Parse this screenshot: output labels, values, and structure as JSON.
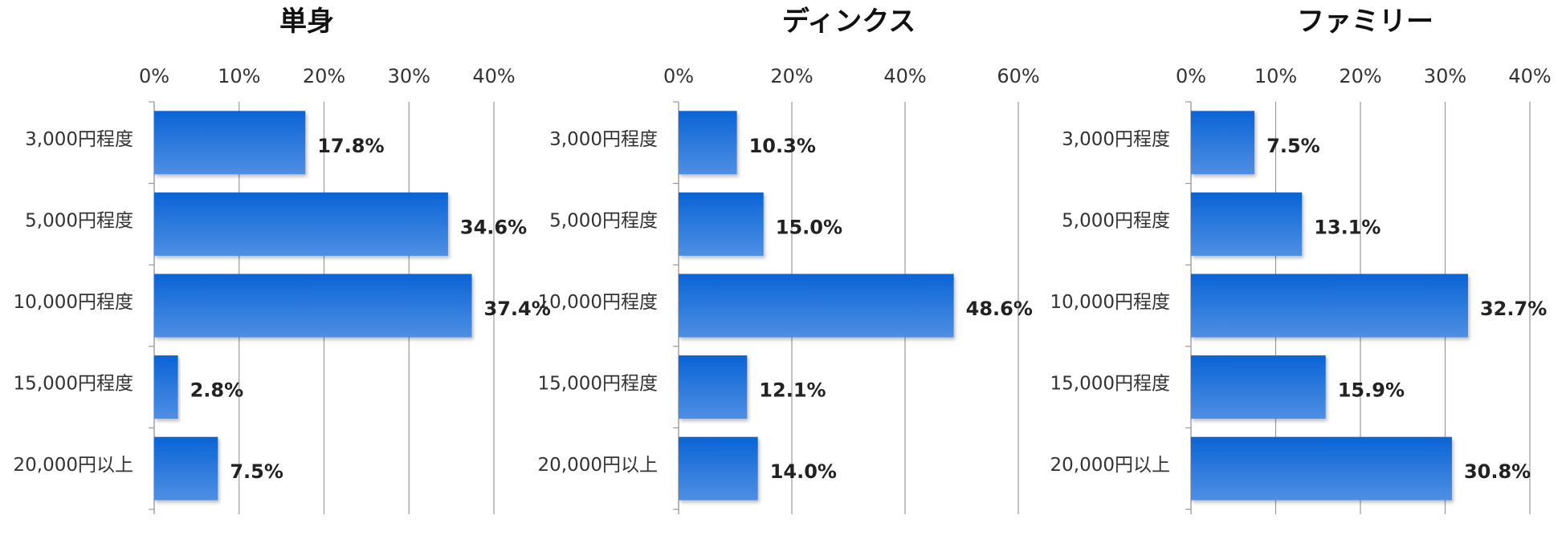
{
  "chart_data": [
    {
      "type": "bar",
      "orientation": "horizontal",
      "title": "単身",
      "categories": [
        "3,000円程度",
        "5,000円程度",
        "10,000円程度",
        "15,000円程度",
        "20,000円以上"
      ],
      "values": [
        17.8,
        34.6,
        37.4,
        2.8,
        7.5
      ],
      "data_labels": [
        "17.8%",
        "34.6%",
        "37.4%",
        "2.8%",
        "7.5%"
      ],
      "xlim": [
        0,
        40
      ],
      "x_ticks": [
        0,
        10,
        20,
        30,
        40
      ],
      "x_tick_labels": [
        "0%",
        "10%",
        "20%",
        "30%",
        "40%"
      ],
      "x_axis_position": "top",
      "grid": true,
      "legend": "none"
    },
    {
      "type": "bar",
      "orientation": "horizontal",
      "title": "ディンクス",
      "categories": [
        "3,000円程度",
        "5,000円程度",
        "10,000円程度",
        "15,000円程度",
        "20,000円以上"
      ],
      "values": [
        10.3,
        15.0,
        48.6,
        12.1,
        14.0
      ],
      "data_labels": [
        "10.3%",
        "15.0%",
        "48.6%",
        "12.1%",
        "14.0%"
      ],
      "xlim": [
        0,
        60
      ],
      "x_ticks": [
        0,
        20,
        40,
        60
      ],
      "x_tick_labels": [
        "0%",
        "20%",
        "40%",
        "60%"
      ],
      "x_axis_position": "top",
      "grid": true,
      "legend": "none"
    },
    {
      "type": "bar",
      "orientation": "horizontal",
      "title": "ファミリー",
      "categories": [
        "3,000円程度",
        "5,000円程度",
        "10,000円程度",
        "15,000円程度",
        "20,000円以上"
      ],
      "values": [
        7.5,
        13.1,
        32.7,
        15.9,
        30.8
      ],
      "data_labels": [
        "7.5%",
        "13.1%",
        "32.7%",
        "15.9%",
        "30.8%"
      ],
      "xlim": [
        0,
        40
      ],
      "x_ticks": [
        0,
        10,
        20,
        30,
        40
      ],
      "x_tick_labels": [
        "0%",
        "10%",
        "20%",
        "30%",
        "40%"
      ],
      "x_axis_position": "top",
      "grid": true,
      "legend": "none"
    }
  ],
  "colors": {
    "bar_top": "#0a64d6",
    "bar_bottom": "#4f8fe3",
    "gridline": "#9a9a9a",
    "text": "#333333"
  }
}
